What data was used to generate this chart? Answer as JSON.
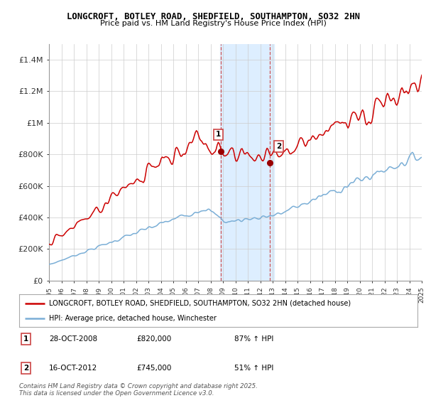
{
  "title1": "LONGCROFT, BOTLEY ROAD, SHEDFIELD, SOUTHAMPTON, SO32 2HN",
  "title2": "Price paid vs. HM Land Registry's House Price Index (HPI)",
  "ylim": [
    0,
    1500000
  ],
  "yticks": [
    0,
    200000,
    400000,
    600000,
    800000,
    1000000,
    1200000,
    1400000
  ],
  "ytick_labels": [
    "£0",
    "£200K",
    "£400K",
    "£600K",
    "£800K",
    "£1M",
    "£1.2M",
    "£1.4M"
  ],
  "xmin": 1995,
  "xmax": 2025,
  "sale1_date": 2008.83,
  "sale1_price": 820000,
  "sale2_date": 2012.79,
  "sale2_price": 745000,
  "highlight_x1": 2008.75,
  "highlight_x2": 2013.1,
  "red_line_color": "#cc0000",
  "blue_line_color": "#7aaed6",
  "highlight_color": "#ddeeff",
  "legend_red_label": "LONGCROFT, BOTLEY ROAD, SHEDFIELD, SOUTHAMPTON, SO32 2HN (detached house)",
  "legend_blue_label": "HPI: Average price, detached house, Winchester",
  "annotation1_date": "28-OCT-2008",
  "annotation1_price": "£820,000",
  "annotation1_pct": "87% ↑ HPI",
  "annotation2_date": "16-OCT-2012",
  "annotation2_price": "£745,000",
  "annotation2_pct": "51% ↑ HPI",
  "footnote": "Contains HM Land Registry data © Crown copyright and database right 2025.\nThis data is licensed under the Open Government Licence v3.0.",
  "bg_color": "#ffffff",
  "grid_color": "#cccccc"
}
